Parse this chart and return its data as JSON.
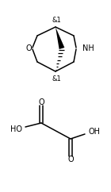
{
  "background_color": "#ffffff",
  "figure_width": 1.4,
  "figure_height": 2.42,
  "dpi": 100,
  "lw": 1.1,
  "fs": 7.0,
  "bicyclic": {
    "stereolabel_top": "&1",
    "stereolabel_bottom": "&1",
    "O_label": "O",
    "NH_label": "NH"
  },
  "oxalic": {
    "HO_left": "HO",
    "OH_right": "OH",
    "O_top": "O",
    "O_bottom": "O"
  }
}
